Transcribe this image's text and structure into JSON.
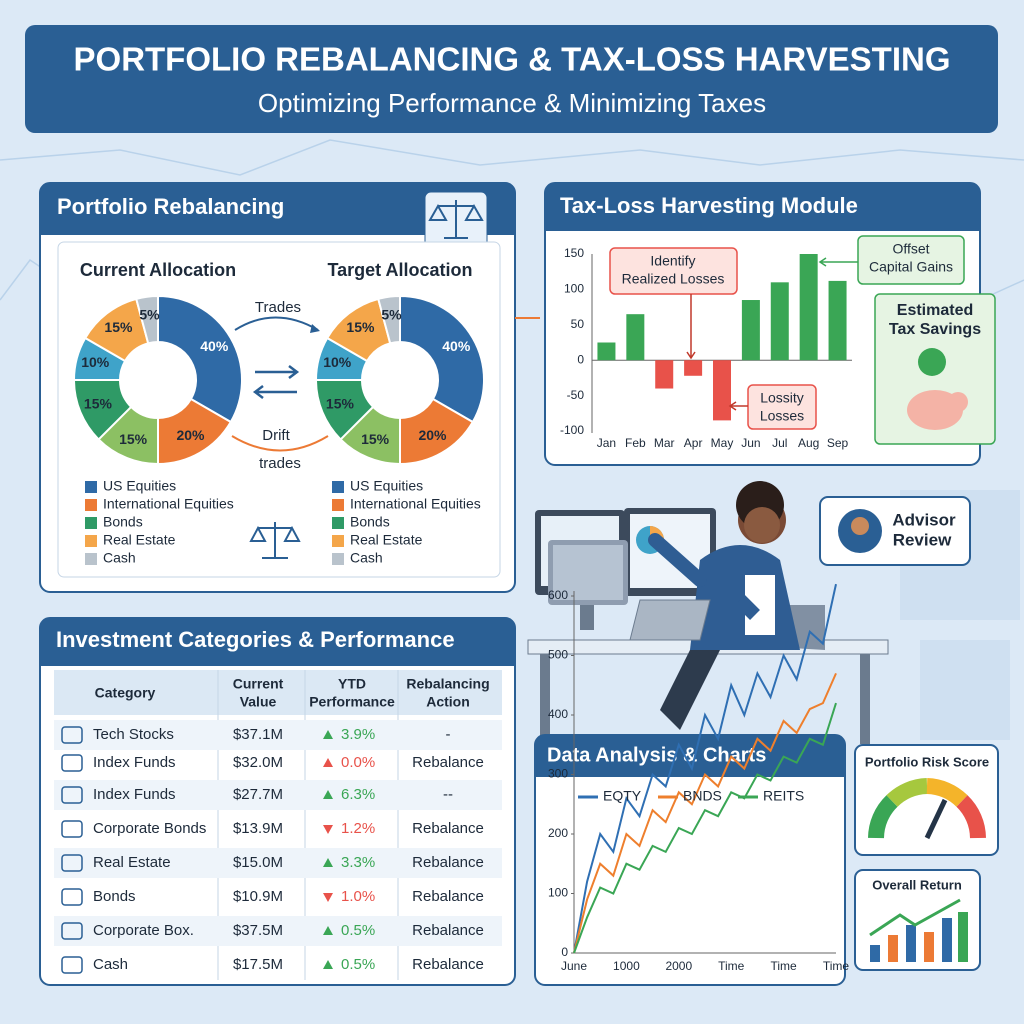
{
  "header": {
    "title": "PORTFOLIO REBALANCING & TAX-LOSS HARVESTING",
    "subtitle": "Optimizing Performance & Minimizing Taxes"
  },
  "rebalancing": {
    "title": "Portfolio Rebalancing",
    "trades_label": "Trades",
    "drift_label": [
      "Drift",
      "trades"
    ],
    "legend": [
      {
        "name": "US Equities",
        "color": "#2f6aa6"
      },
      {
        "name": "International Equities",
        "color": "#ec7a35"
      },
      {
        "name": "Bonds",
        "color": "#2f9a66"
      },
      {
        "name": "Real Estate",
        "color": "#f4a64a"
      },
      {
        "name": "Cash",
        "color": "#b9c3cc"
      }
    ],
    "charts": [
      {
        "type": "pie",
        "title": "Current Allocation",
        "values": [
          40,
          20,
          15,
          15,
          10,
          15,
          5
        ],
        "value_labels": [
          "40%",
          "20%",
          "15%",
          "15%",
          "10%",
          "15%",
          "5%"
        ],
        "colors": [
          "#2f6aa6",
          "#ec7a35",
          "#8cc063",
          "#2f9a66",
          "#3fa3c9",
          "#f4a64a",
          "#b9c3cc"
        ]
      },
      {
        "type": "pie",
        "title": "Target Allocation",
        "values": [
          40,
          20,
          15,
          15,
          10,
          15,
          5
        ],
        "value_labels": [
          "40%",
          "20%",
          "15%",
          "15%",
          "10%",
          "15%",
          "5%"
        ],
        "colors": [
          "#2f6aa6",
          "#ec7a35",
          "#8cc063",
          "#2f9a66",
          "#3fa3c9",
          "#f4a64a",
          "#b9c3cc"
        ]
      }
    ]
  },
  "tax_loss": {
    "title": "Tax-Loss Harvesting Module",
    "chart": {
      "type": "bar",
      "categories": [
        "Jan",
        "Feb",
        "Mar",
        "Apr",
        "May",
        "Jun",
        "Jul",
        "Aug",
        "Sep"
      ],
      "values": [
        25,
        65,
        -40,
        -22,
        -85,
        85,
        110,
        150,
        112
      ],
      "positive_color": "#3aa655",
      "negative_color": "#e8524a",
      "ylim": [
        -100,
        150
      ],
      "yticks": [
        150,
        100,
        50,
        0,
        -50,
        -100
      ]
    },
    "identify": [
      "Identify",
      "Realized Losses"
    ],
    "lossity": [
      "Lossity",
      "Losses"
    ],
    "offset": [
      "Offset",
      "Capital Gains"
    ],
    "savings": [
      "Estimated",
      "Tax Savings"
    ]
  },
  "table": {
    "title": "Investment Categories & Performance",
    "headers": [
      [
        "Category"
      ],
      [
        "Current",
        "Value"
      ],
      [
        "YTD",
        "Performance"
      ],
      [
        "Rebalancing",
        "Action"
      ]
    ],
    "rows": [
      {
        "category": "Tech Stocks",
        "value": "$37.1M",
        "trend": "up",
        "trend_color": "#3aa655",
        "performance": "3.9%",
        "action": "-"
      },
      {
        "category": "Index Funds",
        "value": "$32.0M",
        "trend": "up",
        "trend_color": "#e8524a",
        "performance": "0.0%",
        "action": "Rebalance"
      },
      {
        "category": "Index Funds",
        "value": "$27.7M",
        "trend": "up",
        "trend_color": "#3aa655",
        "performance": "6.3%",
        "action": "--"
      },
      {
        "category": "Corporate Bonds",
        "value": "$13.9M",
        "trend": "down",
        "trend_color": "#e8524a",
        "performance": "1.2%",
        "action": "Rebalance"
      },
      {
        "category": "Real Estate",
        "value": "$15.0M",
        "trend": "up",
        "trend_color": "#3aa655",
        "performance": "3.3%",
        "action": "Rebalance"
      },
      {
        "category": "Bonds",
        "value": "$10.9M",
        "trend": "down",
        "trend_color": "#e8524a",
        "performance": "1.0%",
        "action": "Rebalance"
      },
      {
        "category": "Corporate Box.",
        "value": "$37.5M",
        "trend": "up",
        "trend_color": "#3aa655",
        "performance": "0.5%",
        "action": "Rebalance"
      },
      {
        "category": "Cash",
        "value": "$17.5M",
        "trend": "up",
        "trend_color": "#3aa655",
        "performance": "0.5%",
        "action": "Rebalance"
      }
    ]
  },
  "analysis": {
    "title": "Data Analysis & Charts",
    "chart": {
      "type": "line",
      "x": [
        "June",
        null,
        null,
        null,
        "1000",
        null,
        null,
        null,
        "2000",
        null,
        null,
        null,
        "Time",
        null,
        null,
        null,
        "Time",
        null,
        null,
        null,
        "Time"
      ],
      "series": [
        {
          "name": "EQTY",
          "color": "#2f6fb3",
          "values": [
            0,
            120,
            200,
            170,
            260,
            230,
            300,
            280,
            350,
            310,
            400,
            360,
            450,
            400,
            470,
            430,
            500,
            460,
            540,
            520,
            620
          ]
        },
        {
          "name": "BNDS",
          "color": "#ee7f2d",
          "values": [
            0,
            90,
            150,
            130,
            200,
            180,
            240,
            220,
            270,
            250,
            300,
            280,
            330,
            310,
            360,
            340,
            390,
            370,
            410,
            420,
            470
          ]
        },
        {
          "name": "REITS",
          "color": "#3aa655",
          "values": [
            0,
            60,
            110,
            100,
            150,
            140,
            180,
            170,
            210,
            200,
            240,
            230,
            270,
            260,
            300,
            290,
            330,
            320,
            360,
            350,
            420
          ]
        }
      ],
      "ylim": [
        0,
        600
      ],
      "yticks": [
        0,
        100,
        200,
        300,
        400,
        500,
        600
      ]
    }
  },
  "risk": {
    "title": "Portfolio Risk Score"
  },
  "overall": {
    "title": "Overall Return"
  },
  "advisor": {
    "label": [
      "Advisor",
      "Review"
    ]
  }
}
